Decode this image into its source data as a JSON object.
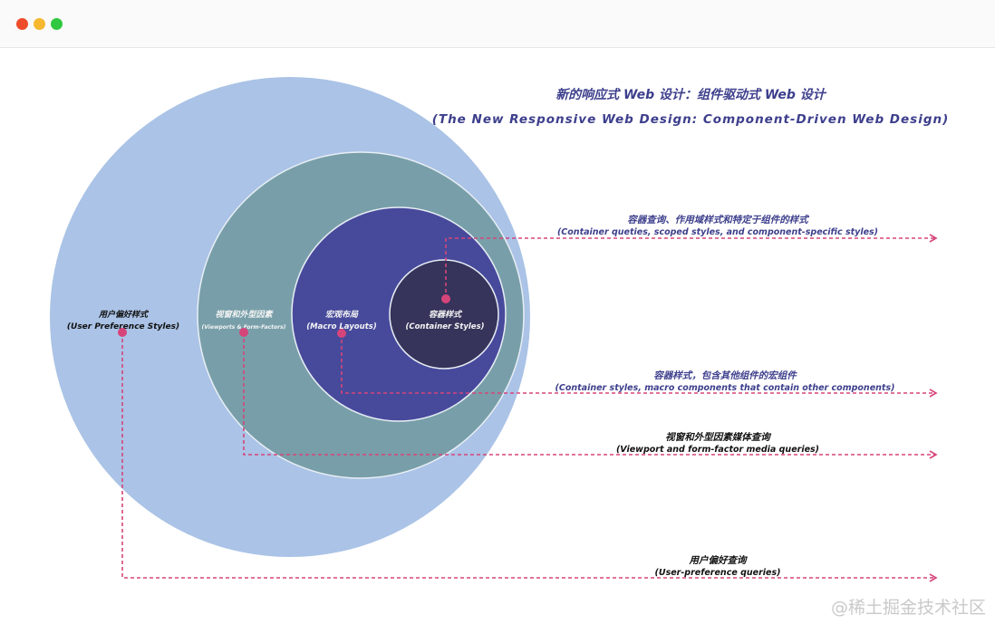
{
  "window": {
    "controls": [
      {
        "name": "close",
        "color": "#ee4b2b"
      },
      {
        "name": "minimize",
        "color": "#f5b82e"
      },
      {
        "name": "maximize",
        "color": "#2fc840"
      }
    ]
  },
  "title": {
    "zh": "新的响应式 Web 设计：组件驱动式 Web 设计",
    "en": "(The New Responsive Web Design: Component-Driven Web Design)"
  },
  "circles": [
    {
      "zh": "用户偏好样式",
      "en": "(User Preference Styles)",
      "color": "#aac3e6"
    },
    {
      "zh": "视窗和外型因素",
      "en": "(Viewports & Form-Factors)",
      "color": "#789fa9"
    },
    {
      "zh": "宏观布局",
      "en": "(Macro Layouts)",
      "color": "#474a9b"
    },
    {
      "zh": "容器样式",
      "en": "(Container Styles)",
      "color": "#36345a"
    }
  ],
  "annotations": [
    {
      "zh": "容器查询、作用域样式和特定于组件的样式",
      "en": "(Container queties, scoped styles, and component-specific styles)",
      "color": "#3d3f8c"
    },
    {
      "zh": "容器样式，包含其他组件的宏组件",
      "en": "(Container styles, macro components that contain other components)",
      "color": "#3d3f8c"
    },
    {
      "zh": "视窗和外型因素媒体查询",
      "en": "(Viewport and form-factor media queries)",
      "color": "#111111"
    },
    {
      "zh": "用户偏好查询",
      "en": "(User-preference queries)",
      "color": "#111111"
    }
  ],
  "connector_color": "#d6457a",
  "watermark": "@稀土掘金技术社区"
}
